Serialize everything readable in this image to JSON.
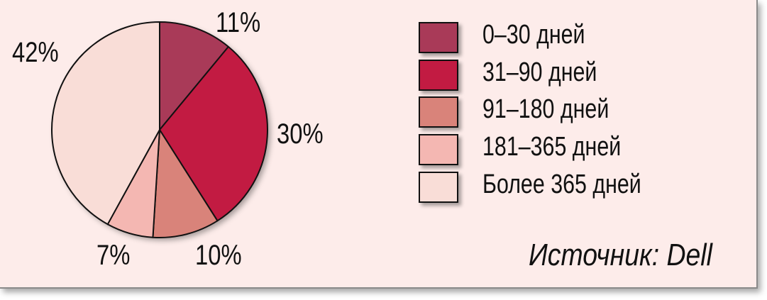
{
  "chart_data": {
    "type": "pie",
    "categories": [
      "0–30 дней",
      "31–90 дней",
      "91–180 дней",
      "181–365 дней",
      "Более 365 дней"
    ],
    "values": [
      11,
      30,
      10,
      7,
      42
    ],
    "labels": [
      "11%",
      "30%",
      "10%",
      "7%",
      "42%"
    ],
    "colors": [
      "#a93a58",
      "#c21b42",
      "#d9837a",
      "#f4b7b2",
      "#f9ddd7"
    ],
    "start_angle": "top, clockwise",
    "legend_position": "right"
  },
  "source": "Источник: Dell",
  "background_color": "#fdecea"
}
